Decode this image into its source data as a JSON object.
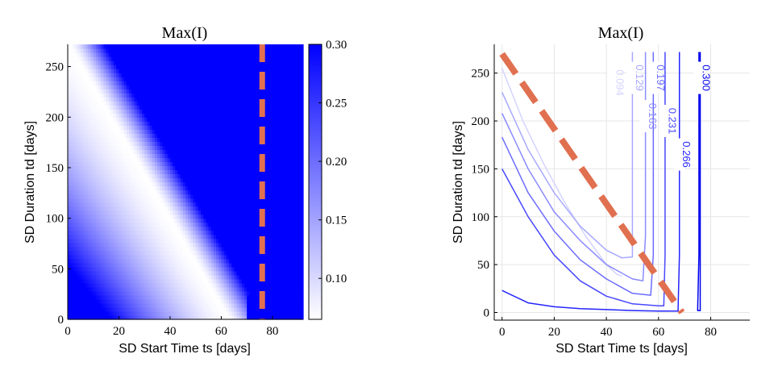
{
  "chart_data": [
    {
      "type": "heatmap",
      "title": "Max(I)",
      "xlabel": "SD Start Time ts [days]",
      "ylabel": "SD Duration td [days]",
      "xlim": [
        0,
        92
      ],
      "ylim": [
        0,
        272
      ],
      "xticks": [
        0,
        20,
        40,
        60,
        80
      ],
      "yticks": [
        0,
        50,
        100,
        150,
        200,
        250
      ],
      "colorbar": {
        "range": [
          0.065,
          0.3
        ],
        "ticks": [
          "0.10",
          "0.15",
          "0.20",
          "0.25",
          "0.30"
        ],
        "low_color": "#ffffff",
        "high_color": "#0000ff"
      },
      "reference_line": {
        "orientation": "vertical",
        "x": 76,
        "color": "#e07050",
        "style": "dashed"
      }
    },
    {
      "type": "line",
      "subtype": "contour",
      "title": "Max(I)",
      "xlabel": "SD Start Time ts [days]",
      "ylabel": "SD Duration td [days]",
      "xlim": [
        -3,
        95
      ],
      "ylim": [
        -8,
        280
      ],
      "xticks": [
        0,
        20,
        40,
        60,
        80
      ],
      "yticks": [
        0,
        50,
        100,
        150,
        200,
        250
      ],
      "grid": true,
      "contour_labels": [
        "0.094",
        "0.129",
        "0.163",
        "0.197",
        "0.231",
        "0.266",
        "0.300"
      ],
      "reference_line": {
        "x": [
          0,
          69
        ],
        "y": [
          270,
          0
        ],
        "color": "#e07050",
        "style": "dashed"
      },
      "contours": [
        {
          "label": "0.094",
          "color": "#d4d4ff",
          "x": [
            0,
            8,
            16,
            24,
            32,
            40,
            44,
            46
          ],
          "y": [
            255,
            200,
            155,
            115,
            80,
            50,
            40,
            38
          ]
        },
        {
          "label": "0.129",
          "color": "#a8a8ff",
          "x": [
            0,
            10,
            20,
            30,
            40,
            46,
            50,
            50,
            50
          ],
          "y": [
            230,
            170,
            125,
            90,
            65,
            57,
            58,
            150,
            272
          ]
        },
        {
          "label": "0.163",
          "color": "#8a8aff",
          "x": [
            0,
            10,
            20,
            30,
            40,
            50,
            54,
            55,
            55
          ],
          "y": [
            208,
            150,
            105,
            75,
            50,
            35,
            33,
            80,
            272
          ]
        },
        {
          "label": "0.197",
          "color": "#6c6cff",
          "x": [
            0,
            10,
            20,
            30,
            40,
            50,
            57,
            58,
            58
          ],
          "y": [
            183,
            125,
            85,
            55,
            35,
            20,
            18,
            60,
            272
          ]
        },
        {
          "label": "0.231",
          "color": "#4848ff",
          "x": [
            0,
            10,
            20,
            30,
            40,
            50,
            60,
            62,
            62.5,
            62.5
          ],
          "y": [
            150,
            100,
            60,
            33,
            17,
            9,
            7,
            7,
            60,
            272
          ]
        },
        {
          "label": "0.266",
          "color": "#2424ff",
          "x": [
            0,
            10,
            20,
            30,
            40,
            50,
            60,
            67.5,
            68,
            68
          ],
          "y": [
            23,
            10,
            6,
            4,
            3,
            2,
            1.5,
            1.5,
            60,
            272
          ]
        },
        {
          "label": "0.300",
          "color": "#0000ee",
          "x": [
            75.5,
            75.5,
            75,
            76,
            76
          ],
          "y": [
            272,
            60,
            2,
            2,
            272
          ]
        }
      ]
    }
  ]
}
